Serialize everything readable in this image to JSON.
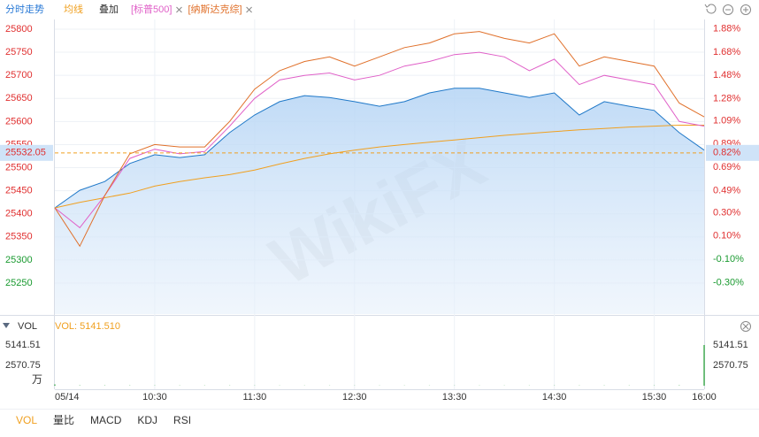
{
  "toolbar": {
    "title": "分时走势",
    "overlay": "叠加"
  },
  "watermark": "WikiFX",
  "chart_data": [
    {
      "type": "line",
      "categories": [
        "05/14",
        null,
        null,
        null,
        "10:30",
        null,
        null,
        null,
        "11:30",
        null,
        null,
        null,
        "12:30",
        null,
        null,
        null,
        "13:30",
        null,
        null,
        null,
        "14:30",
        null,
        null,
        null,
        "15:30",
        null,
        "16:00"
      ],
      "series": [
        {
          "color": "#1f78c8",
          "fill": true,
          "values": [
            25413,
            25451,
            25470,
            25509,
            25528,
            25522,
            25528,
            25576,
            25614,
            25643,
            25656,
            25652,
            25643,
            25633,
            25643,
            25662,
            25672,
            25672,
            25662,
            25652,
            25662,
            25614,
            25643,
            25633,
            25624,
            25576,
            25538
          ]
        },
        {
          "name": "均线",
          "color": "#f0a020",
          "values": [
            25413,
            25425,
            25435,
            25445,
            25460,
            25470,
            25478,
            25485,
            25495,
            25508,
            25520,
            25530,
            25538,
            25545,
            25550,
            25555,
            25560,
            25565,
            25570,
            25574,
            25578,
            25582,
            25585,
            25588,
            25590,
            25592,
            25592
          ]
        },
        {
          "name": "[标普500]",
          "color": "#e060c8",
          "values": [
            25413,
            25370,
            25440,
            25520,
            25540,
            25530,
            25535,
            25590,
            25650,
            25690,
            25700,
            25705,
            25690,
            25700,
            25720,
            25730,
            25745,
            25750,
            25740,
            25710,
            25735,
            25680,
            25700,
            25690,
            25680,
            25600,
            25590
          ]
        },
        {
          "name": "[纳斯达克综]",
          "color": "#e0702a",
          "values": [
            25413,
            25330,
            25440,
            25530,
            25550,
            25545,
            25545,
            25600,
            25670,
            25710,
            25730,
            25740,
            25720,
            25740,
            25760,
            25770,
            25790,
            25795,
            25780,
            25770,
            25790,
            25720,
            25740,
            25730,
            25720,
            25640,
            25610
          ]
        }
      ],
      "ylim": [
        25183,
        25821
      ],
      "yticks": [
        25800,
        25750,
        25700,
        25650,
        25600,
        25550,
        25500,
        25450,
        25400,
        25350,
        25300,
        25250
      ],
      "y2lim": [
        -0.57,
        1.96
      ],
      "y2ticks": [
        {
          "value": 1.88,
          "label": "1.88%"
        },
        {
          "value": 1.68,
          "label": "1.68%"
        },
        {
          "value": 1.48,
          "label": "1.48%"
        },
        {
          "value": 1.28,
          "label": "1.28%"
        },
        {
          "value": 1.09,
          "label": "1.09%"
        },
        {
          "value": 0.89,
          "label": "0.89%"
        },
        {
          "value": 0.69,
          "label": "0.69%"
        },
        {
          "value": 0.49,
          "label": "0.49%"
        },
        {
          "value": 0.3,
          "label": "0.30%"
        },
        {
          "value": 0.1,
          "label": "0.10%"
        },
        {
          "value": -0.1,
          "label": "-0.10%"
        },
        {
          "value": -0.3,
          "label": "-0.30%"
        }
      ],
      "price_marker": {
        "value": 25532.05,
        "y2": {
          "value": 0.82,
          "label": "0.82%"
        }
      },
      "grid": true
    },
    {
      "type": "bar",
      "title": "VOL",
      "legend": "VOL: 5141.510",
      "unit": "万",
      "color": "#20a030",
      "values": [
        160,
        40,
        35,
        30,
        30,
        25,
        25,
        25,
        25,
        20,
        20,
        20,
        20,
        20,
        20,
        20,
        20,
        20,
        20,
        20,
        25,
        25,
        25,
        25,
        30,
        40,
        5141.51
      ],
      "ylim": [
        0,
        5141.51
      ],
      "yticks": [
        5141.51,
        2570.75
      ]
    }
  ],
  "tabs": [
    "VOL",
    "量比",
    "MACD",
    "KDJ",
    "RSI"
  ]
}
